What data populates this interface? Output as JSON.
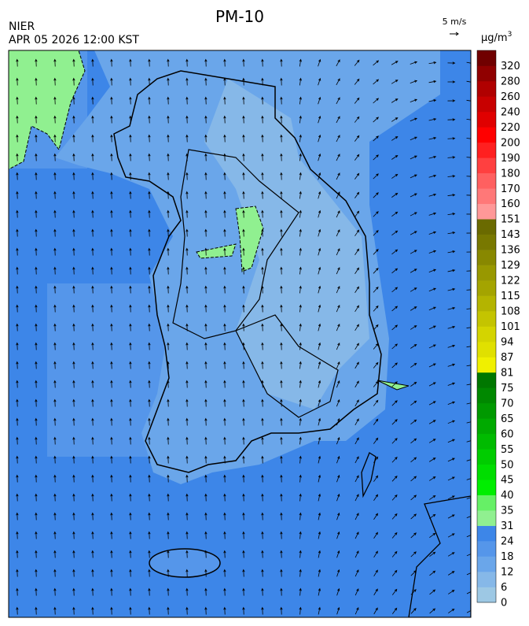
{
  "header": {
    "title": "PM-10",
    "agency": "NIER",
    "datetime": "APR 05 2026 12:00 KST",
    "wind_scale": "5 m/s"
  },
  "colorbar": {
    "unit": "μg/m",
    "unit_superscript": "3",
    "levels": [
      0,
      6,
      12,
      18,
      24,
      31,
      35,
      40,
      45,
      50,
      55,
      60,
      65,
      70,
      75,
      81,
      87,
      94,
      101,
      108,
      115,
      122,
      129,
      136,
      143,
      151,
      160,
      170,
      180,
      190,
      200,
      220,
      240,
      260,
      280,
      320
    ],
    "colors": [
      "#9dc8e4",
      "#86b8e8",
      "#6aa6ea",
      "#5596ea",
      "#3d86e8",
      "#90f090",
      "#66f066",
      "#00ee00",
      "#00dd00",
      "#00cc00",
      "#00bb00",
      "#00aa00",
      "#009900",
      "#008800",
      "#007700",
      "#f0f000",
      "#e0e000",
      "#d4d400",
      "#c4c400",
      "#b4b400",
      "#a4a400",
      "#989800",
      "#888800",
      "#787800",
      "#6a6a00",
      "#ff9898",
      "#ff7878",
      "#ff6060",
      "#ff4040",
      "#ff2020",
      "#ff0000",
      "#e00000",
      "#c80000",
      "#b00000",
      "#900000",
      "#700000"
    ]
  }
}
